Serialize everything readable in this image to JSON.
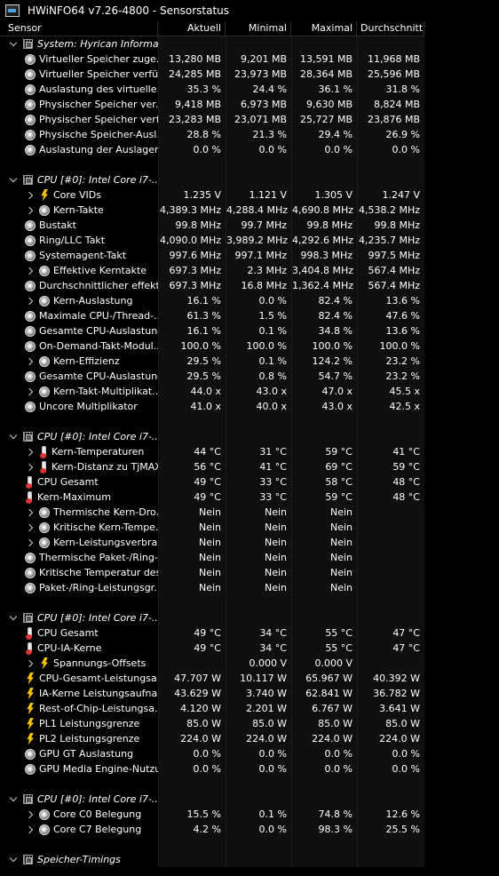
{
  "window": {
    "title": "HWiNFO64 v7.26-4800 - Sensorstatus"
  },
  "columns": {
    "sensor": "Sensor",
    "current": "Aktuell",
    "min": "Minimal",
    "max": "Maximal",
    "avg": "Durchschnitt"
  },
  "rows": [
    {
      "type": "group",
      "indent": 0,
      "label": "System: Hyrican Informa...",
      "values": [
        "",
        "",
        "",
        ""
      ]
    },
    {
      "type": "item",
      "indent": 1,
      "icon": "clock",
      "label": "Virtueller Speicher zuge...",
      "values": [
        "13,280 MB",
        "9,201 MB",
        "13,591 MB",
        "11,968 MB"
      ]
    },
    {
      "type": "item",
      "indent": 1,
      "icon": "clock",
      "label": "Virtueller Speicher verfü...",
      "values": [
        "24,285 MB",
        "23,973 MB",
        "28,364 MB",
        "25,596 MB"
      ]
    },
    {
      "type": "item",
      "indent": 1,
      "icon": "clock",
      "label": "Auslastung des virtuelle...",
      "values": [
        "35.3 %",
        "24.4 %",
        "36.1 %",
        "31.8 %"
      ]
    },
    {
      "type": "item",
      "indent": 1,
      "icon": "clock",
      "label": "Physischer Speicher ver...",
      "values": [
        "9,418 MB",
        "6,973 MB",
        "9,630 MB",
        "8,824 MB"
      ]
    },
    {
      "type": "item",
      "indent": 1,
      "icon": "clock",
      "label": "Physischer Speicher verf...",
      "values": [
        "23,283 MB",
        "23,071 MB",
        "25,727 MB",
        "23,876 MB"
      ]
    },
    {
      "type": "item",
      "indent": 1,
      "icon": "clock",
      "label": "Physische Speicher-Ausl...",
      "values": [
        "28.8 %",
        "21.3 %",
        "29.4 %",
        "26.9 %"
      ]
    },
    {
      "type": "item",
      "indent": 1,
      "icon": "clock",
      "label": "Auslastung der Auslager...",
      "values": [
        "0.0 %",
        "0.0 %",
        "0.0 %",
        "0.0 %"
      ]
    },
    {
      "type": "blank"
    },
    {
      "type": "group",
      "indent": 0,
      "label": "CPU [#0]: Intel Core i7-...",
      "values": [
        "",
        "",
        "",
        ""
      ]
    },
    {
      "type": "item",
      "indent": 2,
      "expand": true,
      "icon": "bolt",
      "label": "Core VIDs",
      "values": [
        "1.235 V",
        "1.121 V",
        "1.305 V",
        "1.247 V"
      ]
    },
    {
      "type": "item",
      "indent": 2,
      "expand": true,
      "icon": "clock",
      "label": "Kern-Takte",
      "values": [
        "4,389.3 MHz",
        "4,288.4 MHz",
        "4,690.8 MHz",
        "4,538.2 MHz"
      ]
    },
    {
      "type": "item",
      "indent": 1,
      "icon": "clock",
      "label": "Bustakt",
      "values": [
        "99.8 MHz",
        "99.7 MHz",
        "99.8 MHz",
        "99.8 MHz"
      ]
    },
    {
      "type": "item",
      "indent": 1,
      "icon": "clock",
      "label": "Ring/LLC Takt",
      "values": [
        "4,090.0 MHz",
        "3,989.2 MHz",
        "4,292.6 MHz",
        "4,235.7 MHz"
      ]
    },
    {
      "type": "item",
      "indent": 1,
      "icon": "clock",
      "label": "Systemagent-Takt",
      "values": [
        "997.6 MHz",
        "997.1 MHz",
        "998.3 MHz",
        "997.5 MHz"
      ]
    },
    {
      "type": "item",
      "indent": 2,
      "expand": true,
      "icon": "clock",
      "label": "Effektive Kerntakte",
      "values": [
        "697.3 MHz",
        "2.3 MHz",
        "3,404.8 MHz",
        "567.4 MHz"
      ]
    },
    {
      "type": "item",
      "indent": 1,
      "icon": "clock",
      "label": "Durchschnittlicher effekti...",
      "values": [
        "697.3 MHz",
        "16.8 MHz",
        "1,362.4 MHz",
        "567.4 MHz"
      ]
    },
    {
      "type": "item",
      "indent": 2,
      "expand": true,
      "icon": "clock",
      "label": "Kern-Auslastung",
      "values": [
        "16.1 %",
        "0.0 %",
        "82.4 %",
        "13.6 %"
      ]
    },
    {
      "type": "item",
      "indent": 1,
      "icon": "clock",
      "label": "Maximale CPU-/Thread-...",
      "values": [
        "61.3 %",
        "1.5 %",
        "82.4 %",
        "47.6 %"
      ]
    },
    {
      "type": "item",
      "indent": 1,
      "icon": "clock",
      "label": "Gesamte CPU-Auslastung",
      "values": [
        "16.1 %",
        "0.1 %",
        "34.8 %",
        "13.6 %"
      ]
    },
    {
      "type": "item",
      "indent": 1,
      "icon": "clock",
      "label": "On-Demand-Takt-Modul...",
      "values": [
        "100.0 %",
        "100.0 %",
        "100.0 %",
        "100.0 %"
      ]
    },
    {
      "type": "item",
      "indent": 2,
      "expand": true,
      "icon": "clock",
      "label": "Kern-Effizienz",
      "values": [
        "29.5 %",
        "0.1 %",
        "124.2 %",
        "23.2 %"
      ]
    },
    {
      "type": "item",
      "indent": 1,
      "icon": "clock",
      "label": "Gesamte CPU-Auslastung",
      "values": [
        "29.5 %",
        "0.8 %",
        "54.7 %",
        "23.2 %"
      ]
    },
    {
      "type": "item",
      "indent": 2,
      "expand": true,
      "icon": "clock",
      "label": "Kern-Takt-Multiplikat...",
      "values": [
        "44.0 x",
        "43.0 x",
        "47.0 x",
        "45.5 x"
      ]
    },
    {
      "type": "item",
      "indent": 1,
      "icon": "clock",
      "label": "Uncore Multiplikator",
      "values": [
        "41.0 x",
        "40.0 x",
        "43.0 x",
        "42.5 x"
      ]
    },
    {
      "type": "blank"
    },
    {
      "type": "group",
      "indent": 0,
      "label": "CPU [#0]: Intel Core i7-...",
      "values": [
        "",
        "",
        "",
        ""
      ]
    },
    {
      "type": "item",
      "indent": 2,
      "expand": true,
      "icon": "therm",
      "label": "Kern-Temperaturen",
      "values": [
        "44 °C",
        "31 °C",
        "59 °C",
        "41 °C"
      ]
    },
    {
      "type": "item",
      "indent": 2,
      "expand": true,
      "icon": "therm",
      "label": "Kern-Distanz zu TjMAX",
      "values": [
        "56 °C",
        "41 °C",
        "69 °C",
        "59 °C"
      ]
    },
    {
      "type": "item",
      "indent": 1,
      "icon": "therm",
      "label": "CPU Gesamt",
      "values": [
        "49 °C",
        "33 °C",
        "58 °C",
        "48 °C"
      ]
    },
    {
      "type": "item",
      "indent": 1,
      "icon": "therm",
      "label": "Kern-Maximum",
      "values": [
        "49 °C",
        "33 °C",
        "59 °C",
        "48 °C"
      ]
    },
    {
      "type": "item",
      "indent": 2,
      "expand": true,
      "icon": "clock",
      "label": "Thermische Kern-Dro...",
      "values": [
        "Nein",
        "Nein",
        "Nein",
        ""
      ]
    },
    {
      "type": "item",
      "indent": 2,
      "expand": true,
      "icon": "clock",
      "label": "Kritische Kern-Tempe...",
      "values": [
        "Nein",
        "Nein",
        "Nein",
        ""
      ]
    },
    {
      "type": "item",
      "indent": 2,
      "expand": true,
      "icon": "clock",
      "label": "Kern-Leistungsverbra...",
      "values": [
        "Nein",
        "Nein",
        "Nein",
        ""
      ]
    },
    {
      "type": "item",
      "indent": 1,
      "icon": "clock",
      "label": "Thermische Paket-/Ring-...",
      "values": [
        "Nein",
        "Nein",
        "Nein",
        ""
      ]
    },
    {
      "type": "item",
      "indent": 1,
      "icon": "clock",
      "label": "Kritische Temperatur des...",
      "values": [
        "Nein",
        "Nein",
        "Nein",
        ""
      ]
    },
    {
      "type": "item",
      "indent": 1,
      "icon": "clock",
      "label": "Paket-/Ring-Leistungsgr...",
      "values": [
        "Nein",
        "Nein",
        "Nein",
        ""
      ]
    },
    {
      "type": "blank"
    },
    {
      "type": "group",
      "indent": 0,
      "label": "CPU [#0]: Intel Core i7-...",
      "values": [
        "",
        "",
        "",
        ""
      ]
    },
    {
      "type": "item",
      "indent": 1,
      "icon": "therm",
      "label": "CPU Gesamt",
      "values": [
        "49 °C",
        "34 °C",
        "55 °C",
        "47 °C"
      ]
    },
    {
      "type": "item",
      "indent": 1,
      "icon": "therm",
      "label": "CPU-IA-Kerne",
      "values": [
        "49 °C",
        "34 °C",
        "55 °C",
        "47 °C"
      ]
    },
    {
      "type": "item",
      "indent": 2,
      "expand": true,
      "icon": "bolt",
      "label": "Spannungs-Offsets",
      "values": [
        "",
        "0.000 V",
        "0.000 V",
        ""
      ]
    },
    {
      "type": "item",
      "indent": 1,
      "icon": "bolt",
      "label": "CPU-Gesamt-Leistungsa...",
      "values": [
        "47.707 W",
        "10.117 W",
        "65.967 W",
        "40.392 W"
      ]
    },
    {
      "type": "item",
      "indent": 1,
      "icon": "bolt",
      "label": "IA-Kerne Leistungsaufna...",
      "values": [
        "43.629 W",
        "3.740 W",
        "62.841 W",
        "36.782 W"
      ]
    },
    {
      "type": "item",
      "indent": 1,
      "icon": "bolt",
      "label": "Rest-of-Chip-Leistungsa...",
      "values": [
        "4.120 W",
        "2.201 W",
        "6.767 W",
        "3.641 W"
      ]
    },
    {
      "type": "item",
      "indent": 1,
      "icon": "bolt",
      "label": "PL1 Leistungsgrenze",
      "values": [
        "85.0 W",
        "85.0 W",
        "85.0 W",
        "85.0 W"
      ]
    },
    {
      "type": "item",
      "indent": 1,
      "icon": "bolt",
      "label": "PL2 Leistungsgrenze",
      "values": [
        "224.0 W",
        "224.0 W",
        "224.0 W",
        "224.0 W"
      ]
    },
    {
      "type": "item",
      "indent": 1,
      "icon": "clock",
      "label": "GPU GT Auslastung",
      "values": [
        "0.0 %",
        "0.0 %",
        "0.0 %",
        "0.0 %"
      ]
    },
    {
      "type": "item",
      "indent": 1,
      "icon": "clock",
      "label": "GPU Media Engine-Nutzung",
      "values": [
        "0.0 %",
        "0.0 %",
        "0.0 %",
        "0.0 %"
      ]
    },
    {
      "type": "blank"
    },
    {
      "type": "group",
      "indent": 0,
      "label": "CPU [#0]: Intel Core i7-...",
      "values": [
        "",
        "",
        "",
        ""
      ]
    },
    {
      "type": "item",
      "indent": 2,
      "expand": true,
      "icon": "clock",
      "label": "Core C0 Belegung",
      "values": [
        "15.5 %",
        "0.1 %",
        "74.8 %",
        "12.6 %"
      ]
    },
    {
      "type": "item",
      "indent": 2,
      "expand": true,
      "icon": "clock",
      "label": "Core C7 Belegung",
      "values": [
        "4.2 %",
        "0.0 %",
        "98.3 %",
        "25.5 %"
      ]
    },
    {
      "type": "blank"
    },
    {
      "type": "group",
      "indent": 0,
      "label": "Speicher-Timings",
      "values": [
        "",
        "",
        "",
        ""
      ]
    }
  ]
}
